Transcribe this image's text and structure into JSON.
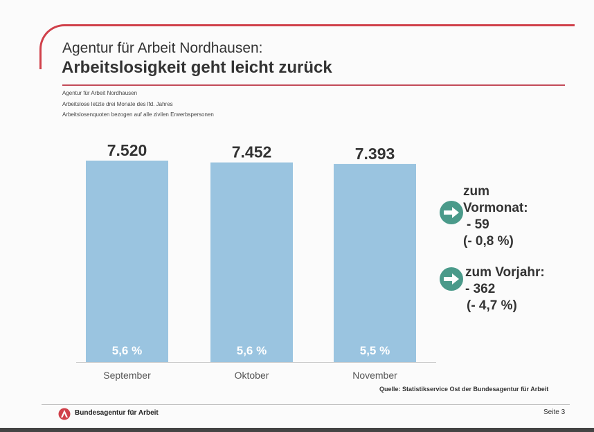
{
  "header": {
    "title": "Agentur für Arbeit Nordhausen:",
    "headline": "Arbeitslosigkeit geht leicht zurück"
  },
  "subtitles": [
    "Agentur für Arbeit Nordhausen",
    "Arbeitslose letzte drei Monate des lfd. Jahres",
    "Arbeitslosenquoten bezogen auf alle zivilen Erwerbspersonen"
  ],
  "chart_data": {
    "type": "bar",
    "categories": [
      "September",
      "Oktober",
      "November"
    ],
    "values": [
      7520,
      7452,
      7393
    ],
    "value_labels": [
      "7.520",
      "7.452",
      "7.393"
    ],
    "rate_labels": [
      "5,6 %",
      "5,6 %",
      "5,5 %"
    ],
    "ylim": [
      0,
      7520
    ],
    "grid": false,
    "bar_color": "#9ac4e0"
  },
  "changes": {
    "month": {
      "label_line1": "zum",
      "label_line2": "Vormonat:",
      "abs": "- 59",
      "pct": "(- 0,8 %)"
    },
    "year": {
      "label": "zum Vorjahr:",
      "abs": "- 362",
      "pct": "(- 4,7 %)"
    },
    "icon": "arrow-right-circle-icon",
    "icon_color": "#4a9a8a"
  },
  "source": "Quelle: Statistikservice Ost der Bundesagentur für Arbeit",
  "footer": {
    "org": "Bundesagentur für Arbeit",
    "page": "Seite 3",
    "accent": "#d0404a"
  }
}
